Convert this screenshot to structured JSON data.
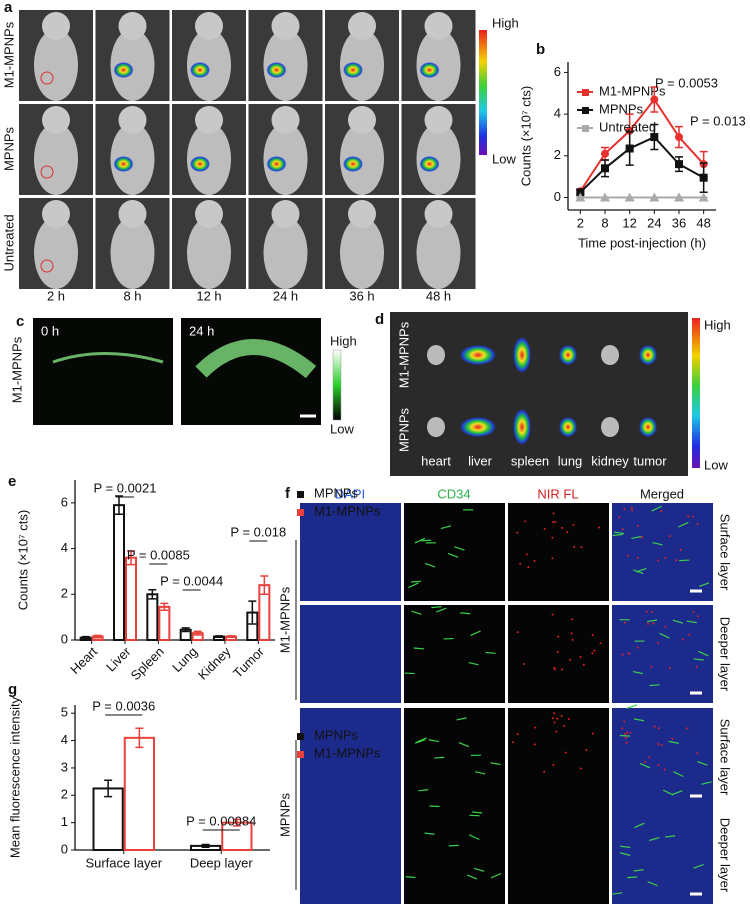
{
  "chart_data": [
    {
      "type": "line",
      "label": "b",
      "xlabel": "Time post-injection (h)",
      "ylabel": "Counts (×10⁷ cts)",
      "categories": [
        "2",
        "8",
        "12",
        "24",
        "36",
        "48"
      ],
      "ylim": [
        -0.6,
        6.5
      ],
      "yticks": [
        0,
        2,
        4,
        6
      ],
      "series": [
        {
          "name": "M1-MPNPs",
          "color": "#e8312f",
          "marker": "circle",
          "values": [
            0.3,
            2.1,
            3.2,
            4.7,
            2.9,
            1.6
          ],
          "errors": [
            0.1,
            0.3,
            0.8,
            0.6,
            0.5,
            0.6
          ]
        },
        {
          "name": "MPNPs",
          "color": "#111111",
          "marker": "square",
          "values": [
            0.25,
            1.4,
            2.35,
            2.9,
            1.6,
            0.95
          ],
          "errors": [
            0.1,
            0.4,
            0.8,
            0.6,
            0.35,
            0.7
          ]
        },
        {
          "name": "Untreated",
          "color": "#aaaaaa",
          "marker": "triangle",
          "values": [
            0,
            0,
            0,
            0,
            0,
            0
          ],
          "errors": [
            0,
            0,
            0,
            0,
            0,
            0
          ]
        }
      ],
      "annotations": [
        "P = 0.0053",
        "P = 0.013"
      ]
    },
    {
      "type": "bar",
      "label": "e",
      "ylabel": "Counts (×10⁷ cts)",
      "categories": [
        "Heart",
        "Liver",
        "Spleen",
        "Lung",
        "Kidney",
        "Tumor"
      ],
      "ylim": [
        0,
        7
      ],
      "yticks": [
        0,
        2,
        4,
        6
      ],
      "series": [
        {
          "name": "MPNPs",
          "color": "#111111",
          "values": [
            0.1,
            5.9,
            2.0,
            0.45,
            0.15,
            1.2
          ],
          "errors": [
            0.05,
            0.4,
            0.2,
            0.08,
            0.03,
            0.5
          ]
        },
        {
          "name": "M1-MPNPs",
          "color": "#e8413c",
          "values": [
            0.15,
            3.6,
            1.45,
            0.3,
            0.15,
            2.4
          ],
          "errors": [
            0.05,
            0.3,
            0.15,
            0.08,
            0.03,
            0.4
          ]
        }
      ],
      "annotations": [
        "P = 0.0021",
        "P = 0.0085",
        "P = 0.0044",
        "P = 0.018"
      ]
    },
    {
      "type": "bar",
      "label": "g",
      "ylabel": "Mean fluorescence intensity",
      "categories": [
        "Surface layer",
        "Deep layer"
      ],
      "ylim": [
        0,
        5.3
      ],
      "yticks": [
        0,
        1,
        2,
        3,
        4,
        5
      ],
      "series": [
        {
          "name": "MPNPs",
          "color": "#111111",
          "values": [
            2.25,
            0.15
          ],
          "errors": [
            0.3,
            0.05
          ]
        },
        {
          "name": "M1-MPNPs",
          "color": "#e8413c",
          "values": [
            4.1,
            1.0
          ],
          "errors": [
            0.35,
            0.12
          ]
        }
      ],
      "annotations": [
        "P = 0.0036",
        "P = 0.00084"
      ]
    }
  ],
  "panel_a": {
    "label": "a",
    "rows": [
      "M1-MPNPs",
      "MPNPs",
      "Untreated"
    ],
    "times": [
      "2 h",
      "8 h",
      "12 h",
      "24 h",
      "36 h",
      "48 h"
    ],
    "scale": [
      "High",
      "Low"
    ]
  },
  "panel_c": {
    "label": "c",
    "row": "M1-MPNPs",
    "times": [
      "0 h",
      "24 h"
    ],
    "scale": [
      "High",
      "Low"
    ]
  },
  "panel_d": {
    "label": "d",
    "rows": [
      "M1-MPNPs",
      "MPNPs"
    ],
    "organs": [
      "heart",
      "liver",
      "spleen",
      "lung",
      "kidney",
      "tumor"
    ],
    "scale": [
      "High",
      "Low"
    ]
  },
  "panel_f": {
    "label": "f",
    "columns": [
      "DAPI",
      "CD34",
      "NIR FL",
      "Merged"
    ],
    "groups": [
      "M1-MPNPs",
      "MPNPs"
    ],
    "layers": [
      "Surface layer",
      "Deeper layer",
      "Surface layer",
      "Deeper layer"
    ]
  }
}
